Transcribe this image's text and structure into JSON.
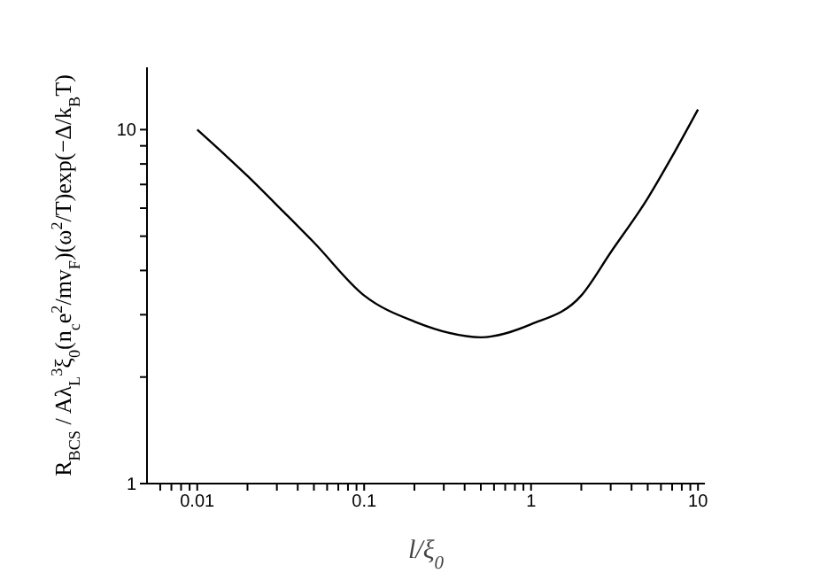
{
  "chart_data": {
    "type": "line",
    "xlabel": "l/ξ$_{0}$",
    "ylabel": "R$_{BCS}$ / Aλ$_{L}$$^{3}$ξ$_{0}$(n$_{c}$e$^{2}$/mv$_{F}$)(ω$^{2}$/T)exp(−Δ/k$_{B}$T)",
    "x": [
      0.01,
      0.02,
      0.033,
      0.05,
      0.1,
      0.2,
      0.5,
      1,
      2,
      3,
      5,
      7,
      10
    ],
    "series": [
      {
        "color": "#000000",
        "values": [
          10,
          7.4,
          5.85,
          4.8,
          3.4,
          2.87,
          2.59,
          2.82,
          3.4,
          4.5,
          6.4,
          8.4,
          11.4
        ]
      }
    ],
    "log": "xy",
    "xlim": [
      0.005,
      11
    ],
    "ylim": [
      1,
      15
    ],
    "xticks": [
      {
        "value": 0.006,
        "label": null
      },
      {
        "value": 0.007,
        "label": null
      },
      {
        "value": 0.008,
        "label": null
      },
      {
        "value": 0.009,
        "label": null
      },
      0.01,
      {
        "value": 0.02,
        "label": null
      },
      {
        "value": 0.03,
        "label": null
      },
      {
        "value": 0.04,
        "label": null
      },
      {
        "value": 0.05,
        "label": null
      },
      {
        "value": 0.06,
        "label": null
      },
      {
        "value": 0.07,
        "label": null
      },
      {
        "value": 0.08,
        "label": null
      },
      {
        "value": 0.09,
        "label": null
      },
      0.1,
      {
        "value": 0.2,
        "label": null
      },
      {
        "value": 0.3,
        "label": null
      },
      {
        "value": 0.4,
        "label": null
      },
      {
        "value": 0.5,
        "label": null
      },
      {
        "value": 0.6,
        "label": null
      },
      {
        "value": 0.7,
        "label": null
      },
      {
        "value": 0.8,
        "label": null
      },
      {
        "value": 0.9,
        "label": null
      },
      1,
      {
        "value": 2,
        "label": null
      },
      {
        "value": 3,
        "label": null
      },
      {
        "value": 4,
        "label": null
      },
      {
        "value": 5,
        "label": null
      },
      {
        "value": 6,
        "label": null
      },
      {
        "value": 7,
        "label": null
      },
      {
        "value": 8,
        "label": null
      },
      {
        "value": 9,
        "label": null
      },
      10
    ],
    "yticks": [
      1,
      {
        "value": 2,
        "label": null
      },
      {
        "value": 3,
        "label": null
      },
      {
        "value": 4,
        "label": null
      },
      {
        "value": 5,
        "label": null
      },
      {
        "value": 6,
        "label": null
      },
      {
        "value": 7,
        "label": null
      },
      {
        "value": 8,
        "label": null
      },
      {
        "value": 9,
        "label": null
      },
      10
    ],
    "grid": false,
    "legend": false,
    "marker": "none",
    "line_style": "solid"
  }
}
